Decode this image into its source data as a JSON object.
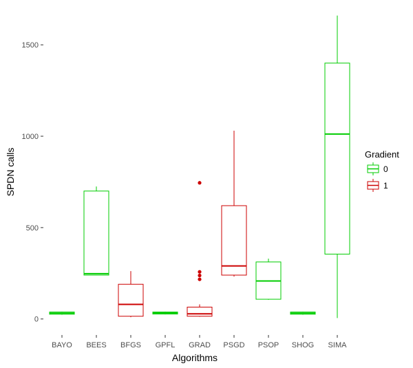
{
  "chart_data": {
    "type": "box",
    "title": "",
    "xlabel": "Algorithms",
    "ylabel": "SPDN calls",
    "ylim": [
      -80,
      1670
    ],
    "y_ticks": [
      0,
      500,
      1000,
      1500
    ],
    "grid": false,
    "legend": {
      "title": "Gradient",
      "position": "right",
      "entries": [
        {
          "label": "0",
          "color": "#00cc00"
        },
        {
          "label": "1",
          "color": "#cc0000"
        }
      ]
    },
    "categories": [
      "BAYO",
      "BEES",
      "BFGS",
      "GPFL",
      "GRAD",
      "PSGD",
      "PSOP",
      "SHOG",
      "SIMA"
    ],
    "boxes": [
      {
        "category": "BAYO",
        "gradient": "0",
        "whisker_low": 23,
        "q1": 26,
        "median": 32,
        "q3": 38,
        "whisker_high": 40,
        "outliers": []
      },
      {
        "category": "BEES",
        "gradient": "0",
        "whisker_low": 238,
        "q1": 240,
        "median": 248,
        "q3": 700,
        "whisker_high": 725,
        "outliers": []
      },
      {
        "category": "BFGS",
        "gradient": "1",
        "whisker_low": 10,
        "q1": 15,
        "median": 80,
        "q3": 190,
        "whisker_high": 262,
        "outliers": []
      },
      {
        "category": "GPFL",
        "gradient": "0",
        "whisker_low": 25,
        "q1": 27,
        "median": 33,
        "q3": 38,
        "whisker_high": 40,
        "outliers": []
      },
      {
        "category": "GRAD",
        "gradient": "1",
        "whisker_low": 12,
        "q1": 15,
        "median": 28,
        "q3": 65,
        "whisker_high": 80,
        "outliers": [
          217,
          238,
          258,
          745
        ]
      },
      {
        "category": "PSGD",
        "gradient": "1",
        "whisker_low": 232,
        "q1": 240,
        "median": 290,
        "q3": 620,
        "whisker_high": 1030,
        "outliers": []
      },
      {
        "category": "PSOP",
        "gradient": "0",
        "whisker_low": 105,
        "q1": 108,
        "median": 208,
        "q3": 312,
        "whisker_high": 330,
        "outliers": []
      },
      {
        "category": "SHOG",
        "gradient": "0",
        "whisker_low": 23,
        "q1": 26,
        "median": 32,
        "q3": 38,
        "whisker_high": 40,
        "outliers": []
      },
      {
        "category": "SIMA",
        "gradient": "0",
        "whisker_low": 5,
        "q1": 355,
        "median": 1012,
        "q3": 1400,
        "whisker_high": 1660,
        "outliers": []
      }
    ]
  }
}
